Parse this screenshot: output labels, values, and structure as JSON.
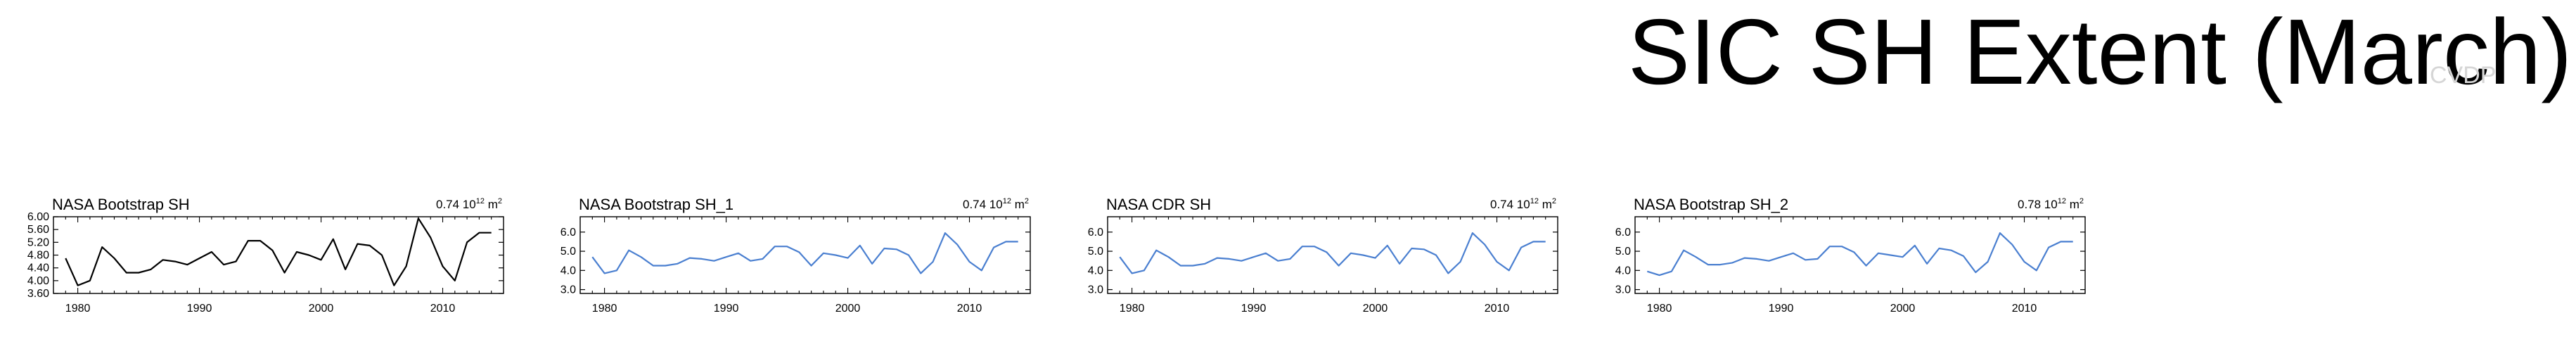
{
  "page": {
    "title": "SIC SH Extent (March)",
    "watermark": "CVDP"
  },
  "chart_data": [
    {
      "type": "line",
      "title": "NASA Bootstrap SH",
      "annotation": {
        "value": "0.74",
        "unit_base": "10",
        "unit_exp": "12",
        "unit_tail": "m",
        "unit_tail_exp": "2"
      },
      "line_color": "#000000",
      "xlim": [
        1978,
        2015
      ],
      "ylim": [
        3.6,
        6.0
      ],
      "yticks": [
        3.6,
        4.0,
        4.4,
        4.8,
        5.2,
        5.6,
        6.0
      ],
      "ytick_labels": [
        "3.60",
        "4.00",
        "4.40",
        "4.80",
        "5.20",
        "5.60",
        "6.00"
      ],
      "xticks": [
        1980,
        1990,
        2000,
        2010
      ],
      "xtick_labels": [
        "1980",
        "1990",
        "2000",
        "2010"
      ],
      "x": [
        1979,
        1980,
        1981,
        1982,
        1983,
        1984,
        1985,
        1986,
        1987,
        1988,
        1989,
        1990,
        1991,
        1992,
        1993,
        1994,
        1995,
        1996,
        1997,
        1998,
        1999,
        2000,
        2001,
        2002,
        2003,
        2004,
        2005,
        2006,
        2007,
        2008,
        2009,
        2010,
        2011,
        2012,
        2013,
        2014
      ],
      "values": [
        4.7,
        3.85,
        4.0,
        5.05,
        4.7,
        4.25,
        4.25,
        4.35,
        4.65,
        4.6,
        4.5,
        4.7,
        4.9,
        4.5,
        4.6,
        5.25,
        5.25,
        4.95,
        4.25,
        4.9,
        4.8,
        4.65,
        5.3,
        4.35,
        5.15,
        5.1,
        4.8,
        3.85,
        4.45,
        5.95,
        5.35,
        4.45,
        4.0,
        5.2,
        5.5,
        5.5
      ]
    },
    {
      "type": "line",
      "title": "NASA Bootstrap SH_1",
      "annotation": {
        "value": "0.74",
        "unit_base": "10",
        "unit_exp": "12",
        "unit_tail": "m",
        "unit_tail_exp": "2"
      },
      "line_color": "#4a7fd0",
      "xlim": [
        1978,
        2015
      ],
      "ylim": [
        2.8,
        6.8
      ],
      "yticks": [
        3.0,
        4.0,
        5.0,
        6.0
      ],
      "ytick_labels": [
        "3.0",
        "4.0",
        "5.0",
        "6.0"
      ],
      "xticks": [
        1980,
        1990,
        2000,
        2010
      ],
      "xtick_labels": [
        "1980",
        "1990",
        "2000",
        "2010"
      ],
      "x": [
        1979,
        1980,
        1981,
        1982,
        1983,
        1984,
        1985,
        1986,
        1987,
        1988,
        1989,
        1990,
        1991,
        1992,
        1993,
        1994,
        1995,
        1996,
        1997,
        1998,
        1999,
        2000,
        2001,
        2002,
        2003,
        2004,
        2005,
        2006,
        2007,
        2008,
        2009,
        2010,
        2011,
        2012,
        2013,
        2014
      ],
      "values": [
        4.7,
        3.85,
        4.0,
        5.05,
        4.7,
        4.25,
        4.25,
        4.35,
        4.65,
        4.6,
        4.5,
        4.7,
        4.9,
        4.5,
        4.6,
        5.25,
        5.25,
        4.95,
        4.25,
        4.9,
        4.8,
        4.65,
        5.3,
        4.35,
        5.15,
        5.1,
        4.8,
        3.85,
        4.45,
        5.95,
        5.35,
        4.45,
        4.0,
        5.2,
        5.5,
        5.5
      ]
    },
    {
      "type": "line",
      "title": "NASA CDR SH",
      "annotation": {
        "value": "0.74",
        "unit_base": "10",
        "unit_exp": "12",
        "unit_tail": "m",
        "unit_tail_exp": "2"
      },
      "line_color": "#4a7fd0",
      "xlim": [
        1978,
        2015
      ],
      "ylim": [
        2.8,
        6.8
      ],
      "yticks": [
        3.0,
        4.0,
        5.0,
        6.0
      ],
      "ytick_labels": [
        "3.0",
        "4.0",
        "5.0",
        "6.0"
      ],
      "xticks": [
        1980,
        1990,
        2000,
        2010
      ],
      "xtick_labels": [
        "1980",
        "1990",
        "2000",
        "2010"
      ],
      "x": [
        1979,
        1980,
        1981,
        1982,
        1983,
        1984,
        1985,
        1986,
        1987,
        1988,
        1989,
        1990,
        1991,
        1992,
        1993,
        1994,
        1995,
        1996,
        1997,
        1998,
        1999,
        2000,
        2001,
        2002,
        2003,
        2004,
        2005,
        2006,
        2007,
        2008,
        2009,
        2010,
        2011,
        2012,
        2013,
        2014
      ],
      "values": [
        4.7,
        3.85,
        4.0,
        5.05,
        4.7,
        4.25,
        4.25,
        4.35,
        4.65,
        4.6,
        4.5,
        4.7,
        4.9,
        4.5,
        4.6,
        5.25,
        5.25,
        4.95,
        4.25,
        4.9,
        4.8,
        4.65,
        5.3,
        4.35,
        5.15,
        5.1,
        4.8,
        3.85,
        4.45,
        5.95,
        5.35,
        4.45,
        4.0,
        5.2,
        5.5,
        5.5
      ]
    },
    {
      "type": "line",
      "title": "NASA Bootstrap SH_2",
      "annotation": {
        "value": "0.78",
        "unit_base": "10",
        "unit_exp": "12",
        "unit_tail": "m",
        "unit_tail_exp": "2"
      },
      "line_color": "#4a7fd0",
      "xlim": [
        1978,
        2015
      ],
      "ylim": [
        2.8,
        6.8
      ],
      "yticks": [
        3.0,
        4.0,
        5.0,
        6.0
      ],
      "ytick_labels": [
        "3.0",
        "4.0",
        "5.0",
        "6.0"
      ],
      "xticks": [
        1980,
        1990,
        2000,
        2010
      ],
      "xtick_labels": [
        "1980",
        "1990",
        "2000",
        "2010"
      ],
      "x": [
        1979,
        1980,
        1981,
        1982,
        1983,
        1984,
        1985,
        1986,
        1987,
        1988,
        1989,
        1990,
        1991,
        1992,
        1993,
        1994,
        1995,
        1996,
        1997,
        1998,
        1999,
        2000,
        2001,
        2002,
        2003,
        2004,
        2005,
        2006,
        2007,
        2008,
        2009,
        2010,
        2011,
        2012,
        2013,
        2014
      ],
      "values": [
        3.95,
        3.75,
        3.95,
        5.05,
        4.7,
        4.3,
        4.3,
        4.4,
        4.65,
        4.6,
        4.5,
        4.7,
        4.9,
        4.55,
        4.6,
        5.25,
        5.25,
        4.95,
        4.25,
        4.9,
        4.8,
        4.7,
        5.3,
        4.35,
        5.15,
        5.05,
        4.75,
        3.9,
        4.45,
        5.95,
        5.35,
        4.45,
        4.0,
        5.2,
        5.5,
        5.5
      ]
    }
  ]
}
